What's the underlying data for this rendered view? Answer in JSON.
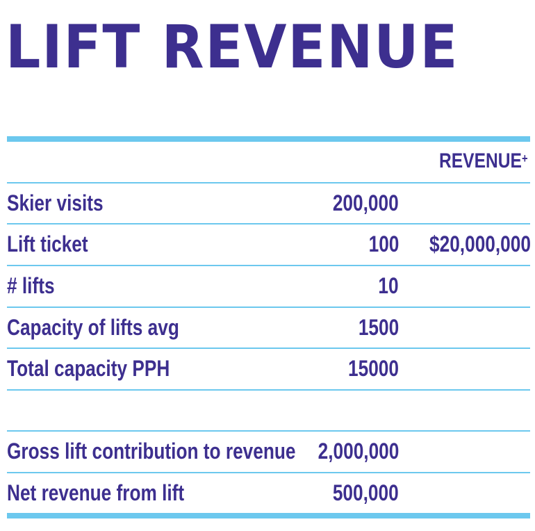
{
  "title": "LIFT REVENUE",
  "table": {
    "header": {
      "revenue_label": "REVENUE",
      "revenue_mark": "+"
    },
    "rows": [
      {
        "label": "Skier visits",
        "value": "200,000",
        "revenue": ""
      },
      {
        "label": "Lift ticket",
        "value": "100",
        "revenue": "$20,000,000"
      },
      {
        "label": "# lifts",
        "value": "10",
        "revenue": ""
      },
      {
        "label": "Capacity of lifts avg",
        "value": "1500",
        "revenue": ""
      },
      {
        "label": "Total capacity PPH",
        "value": "15000",
        "revenue": ""
      }
    ],
    "summary_rows": [
      {
        "label": "Gross lift contribution to revenue",
        "value": "2,000,000"
      },
      {
        "label": "Net revenue from lift",
        "value": "500,000"
      }
    ]
  },
  "colors": {
    "text": "#3d2f8f",
    "rule": "#6cc8ee",
    "background": "#ffffff"
  }
}
